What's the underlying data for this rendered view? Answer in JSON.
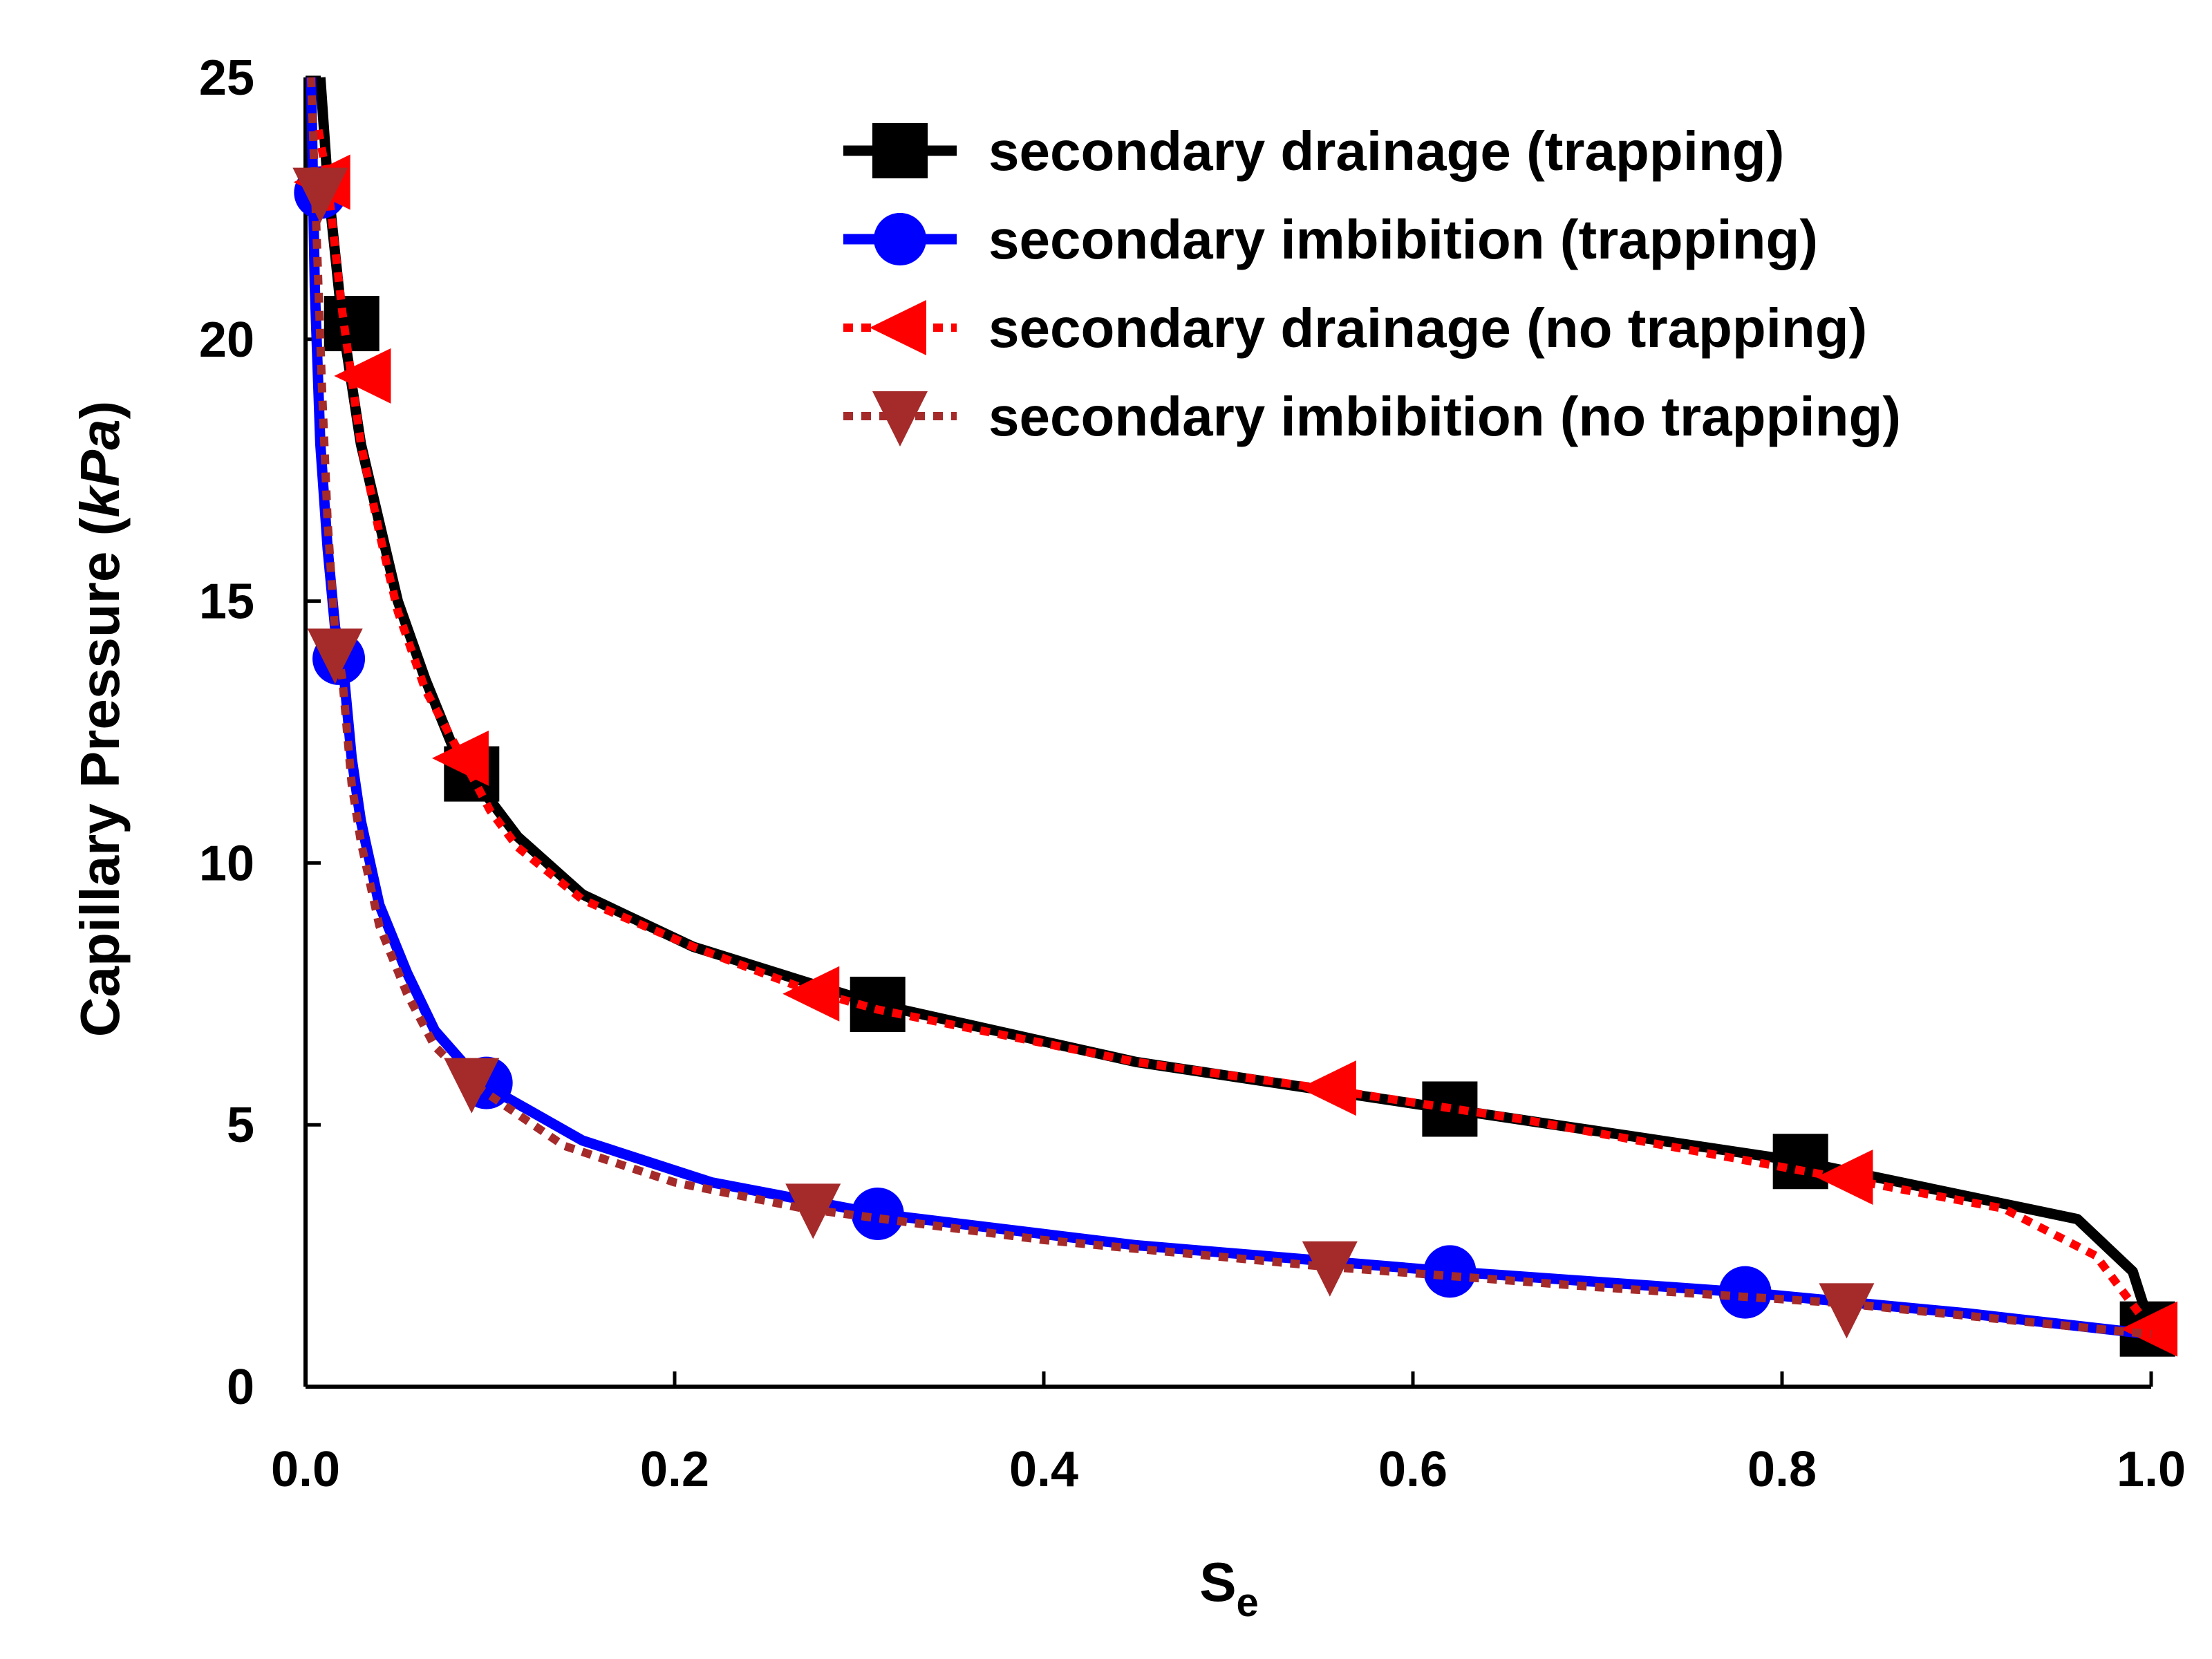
{
  "chart_data": {
    "type": "line",
    "title": "",
    "xlabel_main": "S",
    "xlabel_sub": "e",
    "ylabel_main": "Capillary Pressure (",
    "ylabel_unit": "kPa",
    "ylabel_close": ")",
    "xlim": [
      0.0,
      1.0
    ],
    "ylim": [
      0,
      25
    ],
    "xticks": [
      0.0,
      0.2,
      0.4,
      0.6,
      0.8,
      1.0
    ],
    "xtick_labels": [
      "0.0",
      "0.2",
      "0.4",
      "0.6",
      "0.8",
      "1.0"
    ],
    "yticks": [
      0,
      5,
      10,
      15,
      20,
      25
    ],
    "ytick_labels": [
      "0",
      "5",
      "10",
      "15",
      "20",
      "25"
    ],
    "grid": false,
    "legend_position": "top-right",
    "series": [
      {
        "name": "secondary drainage (trapping)",
        "color": "#000000",
        "line_style": "solid",
        "marker": "square",
        "x": [
          0.008,
          0.012,
          0.02,
          0.03,
          0.04,
          0.05,
          0.065,
          0.08,
          0.09,
          0.1,
          0.115,
          0.15,
          0.21,
          0.31,
          0.45,
          0.62,
          0.81,
          0.96,
          0.99,
          1.0
        ],
        "y": [
          25.0,
          23.0,
          20.3,
          18.0,
          16.5,
          15.0,
          13.5,
          12.2,
          11.7,
          11.2,
          10.5,
          9.4,
          8.4,
          7.3,
          6.2,
          5.3,
          4.3,
          3.2,
          2.2,
          1.1
        ],
        "marker_x": [
          0.025,
          0.09,
          0.31,
          0.62,
          0.81,
          0.998
        ],
        "marker_y": [
          20.3,
          11.7,
          7.3,
          5.3,
          4.3,
          1.1
        ]
      },
      {
        "name": "secondary imbibition (trapping)",
        "color": "#0000ff",
        "line_style": "solid",
        "marker": "circle",
        "x": [
          0.003,
          0.005,
          0.008,
          0.012,
          0.016,
          0.02,
          0.025,
          0.03,
          0.04,
          0.055,
          0.07,
          0.095,
          0.15,
          0.22,
          0.31,
          0.45,
          0.62,
          0.78,
          0.9,
          1.0
        ],
        "y": [
          25.0,
          21.0,
          18.0,
          16.0,
          14.5,
          13.9,
          12.0,
          10.8,
          9.2,
          7.9,
          6.8,
          5.8,
          4.7,
          3.9,
          3.3,
          2.7,
          2.2,
          1.8,
          1.4,
          1.0
        ],
        "marker_x": [
          0.008,
          0.018,
          0.098,
          0.31,
          0.62,
          0.78
        ],
        "marker_y": [
          22.8,
          13.9,
          5.8,
          3.3,
          2.2,
          1.8
        ]
      },
      {
        "name": "secondary drainage (no trapping)",
        "color": "#ff0000",
        "line_style": "dotted",
        "marker": "triangle-left",
        "x": [
          0.007,
          0.012,
          0.02,
          0.03,
          0.04,
          0.05,
          0.065,
          0.085,
          0.1,
          0.115,
          0.15,
          0.21,
          0.27,
          0.31,
          0.45,
          0.55,
          0.66,
          0.83,
          0.92,
          0.97,
          1.0
        ],
        "y": [
          24.0,
          23.0,
          20.5,
          18.0,
          16.3,
          14.8,
          13.3,
          12.0,
          11.0,
          10.3,
          9.3,
          8.4,
          7.6,
          7.2,
          6.2,
          5.7,
          5.1,
          4.0,
          3.4,
          2.5,
          1.1
        ],
        "marker_x": [
          0.01,
          0.032,
          0.085,
          0.275,
          0.555,
          0.835,
          1.0
        ],
        "marker_y": [
          23.0,
          19.3,
          12.0,
          7.5,
          5.7,
          4.0,
          1.1
        ]
      },
      {
        "name": "secondary imbibition (no trapping)",
        "color": "#a52a2a",
        "line_style": "dotted",
        "marker": "triangle-down",
        "x": [
          0.003,
          0.006,
          0.009,
          0.012,
          0.016,
          0.02,
          0.025,
          0.03,
          0.04,
          0.055,
          0.07,
          0.09,
          0.14,
          0.2,
          0.27,
          0.4,
          0.55,
          0.7,
          0.83,
          1.0
        ],
        "y": [
          25.0,
          22.0,
          19.0,
          16.5,
          14.4,
          13.5,
          11.5,
          10.4,
          8.8,
          7.5,
          6.5,
          5.8,
          4.6,
          3.9,
          3.4,
          2.8,
          2.3,
          1.9,
          1.6,
          1.0
        ],
        "marker_x": [
          0.008,
          0.016,
          0.09,
          0.275,
          0.555,
          0.835
        ],
        "marker_y": [
          22.8,
          14.0,
          5.8,
          3.4,
          2.3,
          1.5
        ]
      }
    ]
  }
}
